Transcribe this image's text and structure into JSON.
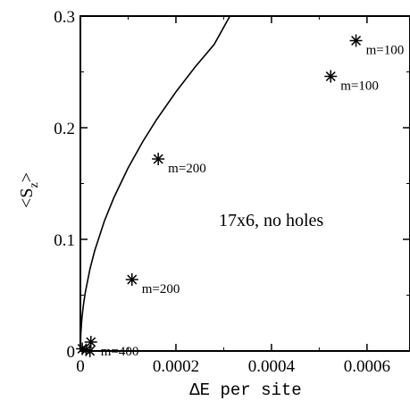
{
  "chart_data": {
    "type": "scatter",
    "title": "",
    "xlabel": "ΔE per site",
    "ylabel": "<S_z>",
    "xlim": [
      0,
      0.00069
    ],
    "ylim": [
      0,
      0.3
    ],
    "x_ticks": [
      {
        "value": 0,
        "label": "0"
      },
      {
        "value": 0.0002,
        "label": "0.0002"
      },
      {
        "value": 0.0004,
        "label": "0.0004"
      },
      {
        "value": 0.0006,
        "label": "0.0006"
      }
    ],
    "y_ticks": [
      {
        "value": 0,
        "label": "0"
      },
      {
        "value": 0.1,
        "label": "0.1"
      },
      {
        "value": 0.2,
        "label": "0.2"
      },
      {
        "value": 0.3,
        "label": "0.3"
      }
    ],
    "annotation": "17x6, no holes",
    "points": [
      {
        "x": 0.000577,
        "y": 0.278,
        "label": "m=100"
      },
      {
        "x": 0.000524,
        "y": 0.246,
        "label": "m=100"
      },
      {
        "x": 0.000163,
        "y": 0.172,
        "label": "m=200"
      },
      {
        "x": 0.000108,
        "y": 0.064,
        "label": "m=200"
      },
      {
        "x": 2.2e-05,
        "y": 0.008,
        "label": "m=400"
      },
      {
        "x": 4e-06,
        "y": 0.002,
        "label": ""
      },
      {
        "x": 1.2e-05,
        "y": 0.001,
        "label": ""
      },
      {
        "x": 2e-05,
        "y": 0.0,
        "label": ""
      }
    ],
    "curve": {
      "x": [
        0,
        1e-06,
        3e-06,
        6e-06,
        1e-05,
        2e-05,
        3e-05,
        5e-05,
        7e-05,
        0.0001,
        0.00013,
        0.00016,
        0.0002,
        0.00024,
        0.00028,
        0.000313
      ],
      "y": [
        0,
        0.0164,
        0.0284,
        0.0402,
        0.0519,
        0.0734,
        0.0899,
        0.1161,
        0.1373,
        0.1641,
        0.1871,
        0.2076,
        0.2321,
        0.2543,
        0.2746,
        0.3
      ]
    },
    "grid": false,
    "legend": "none"
  }
}
